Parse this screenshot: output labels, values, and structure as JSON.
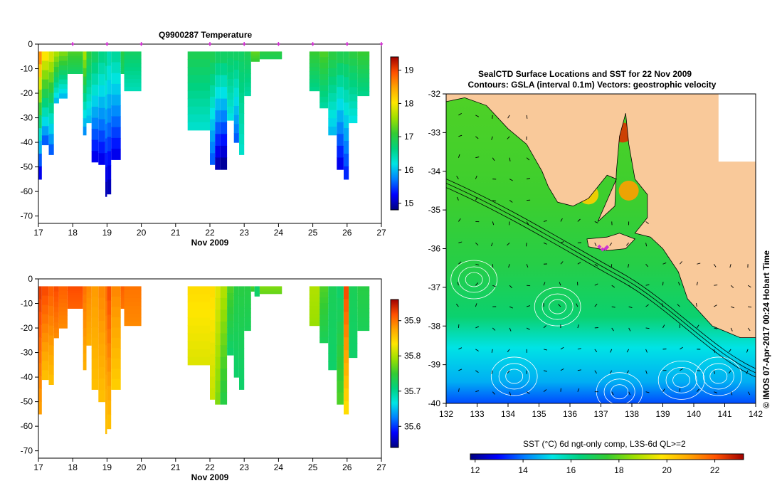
{
  "temperature_panel": {
    "title": "Q9900287  Temperature",
    "xlabel": "Nov 2009",
    "x_ticks": [
      "17",
      "18",
      "19",
      "20",
      "21",
      "22",
      "23",
      "24",
      "25",
      "26",
      "27"
    ],
    "y_ticks": [
      "0",
      "-10",
      "-20",
      "-30",
      "-40",
      "-50",
      "-60",
      "-70"
    ],
    "colorbar_ticks": [
      "19",
      "18",
      "17",
      "16",
      "15"
    ]
  },
  "salinity_panel": {
    "xlabel": "Nov 2009",
    "x_ticks": [
      "17",
      "18",
      "19",
      "20",
      "21",
      "22",
      "23",
      "24",
      "25",
      "26",
      "27"
    ],
    "y_ticks": [
      "0",
      "-10",
      "-20",
      "-30",
      "-40",
      "-50",
      "-60",
      "-70"
    ],
    "colorbar_ticks": [
      "35.9",
      "35.8",
      "35.7",
      "35.6"
    ]
  },
  "map_panel": {
    "title_line1": "SealCTD Surface Locations and SST for 22 Nov 2009",
    "title_line2": "Contours: GSLA (interval 0.1m) Vectors: geostrophic velocity",
    "x_ticks": [
      "132",
      "133",
      "134",
      "135",
      "136",
      "137",
      "138",
      "139",
      "140",
      "141",
      "142"
    ],
    "y_ticks": [
      "-32",
      "-33",
      "-34",
      "-35",
      "-36",
      "-37",
      "-38",
      "-39",
      "-40"
    ],
    "colorbar_label": "SST (°C) 6d ngt-only comp, L3S-6d QL>=2",
    "colorbar_ticks": [
      "12",
      "14",
      "16",
      "18",
      "20",
      "22"
    ],
    "watermark": "© IMOS 07-Apr-2017 00:24 Hobart Time"
  },
  "colors": {
    "land": "#f9c99a",
    "ramp": [
      "#00007f",
      "#0000ff",
      "#007fff",
      "#00e5e5",
      "#00d27f",
      "#33cc33",
      "#9ee000",
      "#ffe600",
      "#ffa500",
      "#ff5000",
      "#a00000"
    ],
    "marker": "#d030d0",
    "contour": "#ffffff"
  },
  "chart_data": [
    {
      "type": "heatmap",
      "title": "Q9900287  Temperature",
      "xlabel": "Nov 2009",
      "ylabel": "",
      "xlim": [
        17,
        27
      ],
      "ylim": [
        -73,
        0
      ],
      "clim": [
        14.8,
        19.4
      ],
      "profile_times_marked": [
        18.0,
        19.0,
        20.0,
        22.0,
        23.0,
        24.0,
        25.0,
        26.0,
        27.0
      ],
      "profiles": [
        {
          "t0": 17.0,
          "t1": 17.1,
          "depth": -55,
          "top": 18.6,
          "bottom": 15.2
        },
        {
          "t0": 17.1,
          "t1": 17.3,
          "depth": -41,
          "top": 18.0,
          "bottom": 15.6
        },
        {
          "t0": 17.3,
          "t1": 17.45,
          "depth": -45,
          "top": 17.8,
          "bottom": 15.6
        },
        {
          "t0": 17.45,
          "t1": 17.6,
          "depth": -24,
          "top": 17.6,
          "bottom": 16.0
        },
        {
          "t0": 17.6,
          "t1": 17.85,
          "depth": -22,
          "top": 17.4,
          "bottom": 16.0
        },
        {
          "t0": 17.85,
          "t1": 18.3,
          "depth": -12,
          "top": 17.2,
          "bottom": 16.8
        },
        {
          "t0": 18.3,
          "t1": 18.4,
          "depth": -37,
          "top": 17.6,
          "bottom": 15.8
        },
        {
          "t0": 18.4,
          "t1": 18.55,
          "depth": -32,
          "top": 17.0,
          "bottom": 16.0
        },
        {
          "t0": 18.55,
          "t1": 18.75,
          "depth": -48,
          "top": 16.8,
          "bottom": 15.2
        },
        {
          "t0": 18.75,
          "t1": 18.95,
          "depth": -49,
          "top": 16.6,
          "bottom": 15.2
        },
        {
          "t0": 18.95,
          "t1": 19.0,
          "depth": -62,
          "top": 16.6,
          "bottom": 15.0
        },
        {
          "t0": 19.0,
          "t1": 19.12,
          "depth": -61,
          "top": 16.4,
          "bottom": 15.0
        },
        {
          "t0": 19.12,
          "t1": 19.4,
          "depth": -47,
          "top": 16.5,
          "bottom": 15.2
        },
        {
          "t0": 19.4,
          "t1": 19.5,
          "depth": -12,
          "top": 17.0,
          "bottom": 16.8
        },
        {
          "t0": 19.5,
          "t1": 20.0,
          "depth": -19,
          "top": 16.8,
          "bottom": 16.4
        },
        {
          "t0": 21.35,
          "t1": 22.0,
          "depth": -35,
          "top": 16.9,
          "bottom": 16.3
        },
        {
          "t0": 22.0,
          "t1": 22.15,
          "depth": -49,
          "top": 16.9,
          "bottom": 15.6
        },
        {
          "t0": 22.15,
          "t1": 22.3,
          "depth": -51,
          "top": 16.8,
          "bottom": 15.0
        },
        {
          "t0": 22.3,
          "t1": 22.5,
          "depth": -51,
          "top": 16.8,
          "bottom": 14.9
        },
        {
          "t0": 22.5,
          "t1": 22.7,
          "depth": -31,
          "top": 16.8,
          "bottom": 16.2
        },
        {
          "t0": 22.7,
          "t1": 22.85,
          "depth": -40,
          "top": 16.8,
          "bottom": 15.6
        },
        {
          "t0": 22.85,
          "t1": 23.0,
          "depth": -45,
          "top": 16.8,
          "bottom": 16.3
        },
        {
          "t0": 23.0,
          "t1": 23.2,
          "depth": -21,
          "top": 16.9,
          "bottom": 16.5
        },
        {
          "t0": 23.2,
          "t1": 23.45,
          "depth": -7,
          "top": 17.3,
          "bottom": 17.1
        },
        {
          "t0": 23.45,
          "t1": 24.1,
          "depth": -6,
          "top": 17.0,
          "bottom": 16.9
        },
        {
          "t0": 24.9,
          "t1": 25.2,
          "depth": -19,
          "top": 17.1,
          "bottom": 16.6
        },
        {
          "t0": 25.2,
          "t1": 25.45,
          "depth": -26,
          "top": 17.2,
          "bottom": 16.5
        },
        {
          "t0": 25.45,
          "t1": 25.7,
          "depth": -37,
          "top": 17.0,
          "bottom": 16.0
        },
        {
          "t0": 25.7,
          "t1": 25.9,
          "depth": -51,
          "top": 16.9,
          "bottom": 15.2
        },
        {
          "t0": 25.9,
          "t1": 26.05,
          "depth": -55,
          "top": 16.9,
          "bottom": 15.4
        },
        {
          "t0": 26.05,
          "t1": 26.3,
          "depth": -32,
          "top": 17.0,
          "bottom": 16.2
        },
        {
          "t0": 26.3,
          "t1": 26.65,
          "depth": -21,
          "top": 17.1,
          "bottom": 16.6
        }
      ]
    },
    {
      "type": "heatmap",
      "title": "",
      "xlabel": "Nov 2009",
      "ylabel": "",
      "xlim": [
        17,
        27
      ],
      "ylim": [
        -73,
        0
      ],
      "clim": [
        35.54,
        35.96
      ],
      "profiles": [
        {
          "t0": 17.0,
          "t1": 17.1,
          "depth": -55,
          "top": 35.93,
          "bottom": 35.88
        },
        {
          "t0": 17.1,
          "t1": 17.3,
          "depth": -41,
          "top": 35.92,
          "bottom": 35.86
        },
        {
          "t0": 17.3,
          "t1": 17.45,
          "depth": -43,
          "top": 35.91,
          "bottom": 35.86
        },
        {
          "t0": 17.45,
          "t1": 17.6,
          "depth": -24,
          "top": 35.92,
          "bottom": 35.89
        },
        {
          "t0": 17.6,
          "t1": 17.85,
          "depth": -20,
          "top": 35.91,
          "bottom": 35.89
        },
        {
          "t0": 17.85,
          "t1": 18.3,
          "depth": -12,
          "top": 35.92,
          "bottom": 35.91
        },
        {
          "t0": 18.3,
          "t1": 18.4,
          "depth": -37,
          "top": 35.9,
          "bottom": 35.87
        },
        {
          "t0": 18.4,
          "t1": 18.55,
          "depth": -27,
          "top": 35.89,
          "bottom": 35.87
        },
        {
          "t0": 18.55,
          "t1": 18.75,
          "depth": -45,
          "top": 35.88,
          "bottom": 35.86
        },
        {
          "t0": 18.75,
          "t1": 18.95,
          "depth": -50,
          "top": 35.89,
          "bottom": 35.86
        },
        {
          "t0": 18.95,
          "t1": 19.0,
          "depth": -63,
          "top": 35.9,
          "bottom": 35.86
        },
        {
          "t0": 19.0,
          "t1": 19.12,
          "depth": -61,
          "top": 35.92,
          "bottom": 35.86
        },
        {
          "t0": 19.12,
          "t1": 19.4,
          "depth": -45,
          "top": 35.89,
          "bottom": 35.85
        },
        {
          "t0": 19.4,
          "t1": 19.5,
          "depth": -12,
          "top": 35.91,
          "bottom": 35.9
        },
        {
          "t0": 19.5,
          "t1": 20.0,
          "depth": -19,
          "top": 35.9,
          "bottom": 35.89
        },
        {
          "t0": 21.35,
          "t1": 22.0,
          "depth": -35,
          "top": 35.84,
          "bottom": 35.82
        },
        {
          "t0": 22.0,
          "t1": 22.15,
          "depth": -49,
          "top": 35.84,
          "bottom": 35.81
        },
        {
          "t0": 22.15,
          "t1": 22.3,
          "depth": -51,
          "top": 35.82,
          "bottom": 35.78
        },
        {
          "t0": 22.3,
          "t1": 22.5,
          "depth": -51,
          "top": 35.8,
          "bottom": 35.74
        },
        {
          "t0": 22.5,
          "t1": 22.7,
          "depth": -31,
          "top": 35.76,
          "bottom": 35.72
        },
        {
          "t0": 22.7,
          "t1": 22.85,
          "depth": -40,
          "top": 35.74,
          "bottom": 35.72
        },
        {
          "t0": 22.85,
          "t1": 23.0,
          "depth": -45,
          "top": 35.74,
          "bottom": 35.72
        },
        {
          "t0": 23.0,
          "t1": 23.2,
          "depth": -21,
          "top": 35.74,
          "bottom": 35.73
        },
        {
          "t0": 23.2,
          "t1": 23.3,
          "depth": -5,
          "top": 35.76,
          "bottom": 35.75
        },
        {
          "t0": 23.3,
          "t1": 23.45,
          "depth": -7,
          "top": 35.72,
          "bottom": 35.72
        },
        {
          "t0": 23.45,
          "t1": 24.1,
          "depth": -6,
          "top": 35.78,
          "bottom": 35.77
        },
        {
          "t0": 24.9,
          "t1": 25.2,
          "depth": -19,
          "top": 35.8,
          "bottom": 35.79
        },
        {
          "t0": 25.2,
          "t1": 25.45,
          "depth": -26,
          "top": 35.76,
          "bottom": 35.73
        },
        {
          "t0": 25.45,
          "t1": 25.7,
          "depth": -37,
          "top": 35.73,
          "bottom": 35.72
        },
        {
          "t0": 25.7,
          "t1": 25.9,
          "depth": -51,
          "top": 35.72,
          "bottom": 35.76
        },
        {
          "t0": 25.9,
          "t1": 26.05,
          "depth": -55,
          "top": 35.92,
          "bottom": 35.84
        },
        {
          "t0": 26.05,
          "t1": 26.3,
          "depth": -32,
          "top": 35.73,
          "bottom": 35.72
        },
        {
          "t0": 26.3,
          "t1": 26.65,
          "depth": -21,
          "top": 35.74,
          "bottom": 35.73
        }
      ]
    },
    {
      "type": "heatmap",
      "title": "SealCTD Surface Locations and SST for 22 Nov 2009",
      "xlabel": "",
      "ylabel": "",
      "xlim": [
        132,
        142
      ],
      "ylim": [
        -40,
        -32
      ],
      "clim": [
        11.8,
        23.2
      ],
      "sst_warm_spots": [
        {
          "lon": 137.7,
          "lat": -33.0,
          "sst": 22.5
        },
        {
          "lon": 137.9,
          "lat": -34.5,
          "sst": 21.0
        },
        {
          "lon": 136.6,
          "lat": -34.6,
          "sst": 20.2
        }
      ],
      "seal_locations": [
        {
          "lon": 136.95,
          "lat": -35.95
        },
        {
          "lon": 137.05,
          "lat": -36.02
        },
        {
          "lon": 137.15,
          "lat": -36.0
        },
        {
          "lon": 137.2,
          "lat": -35.96
        }
      ],
      "contour_centres": [
        {
          "lon": 132.9,
          "lat": -36.8
        },
        {
          "lon": 134.2,
          "lat": -39.3
        },
        {
          "lon": 135.6,
          "lat": -37.5
        },
        {
          "lon": 137.6,
          "lat": -39.7
        },
        {
          "lon": 139.6,
          "lat": -39.4
        },
        {
          "lon": 140.8,
          "lat": -39.3
        }
      ]
    }
  ]
}
